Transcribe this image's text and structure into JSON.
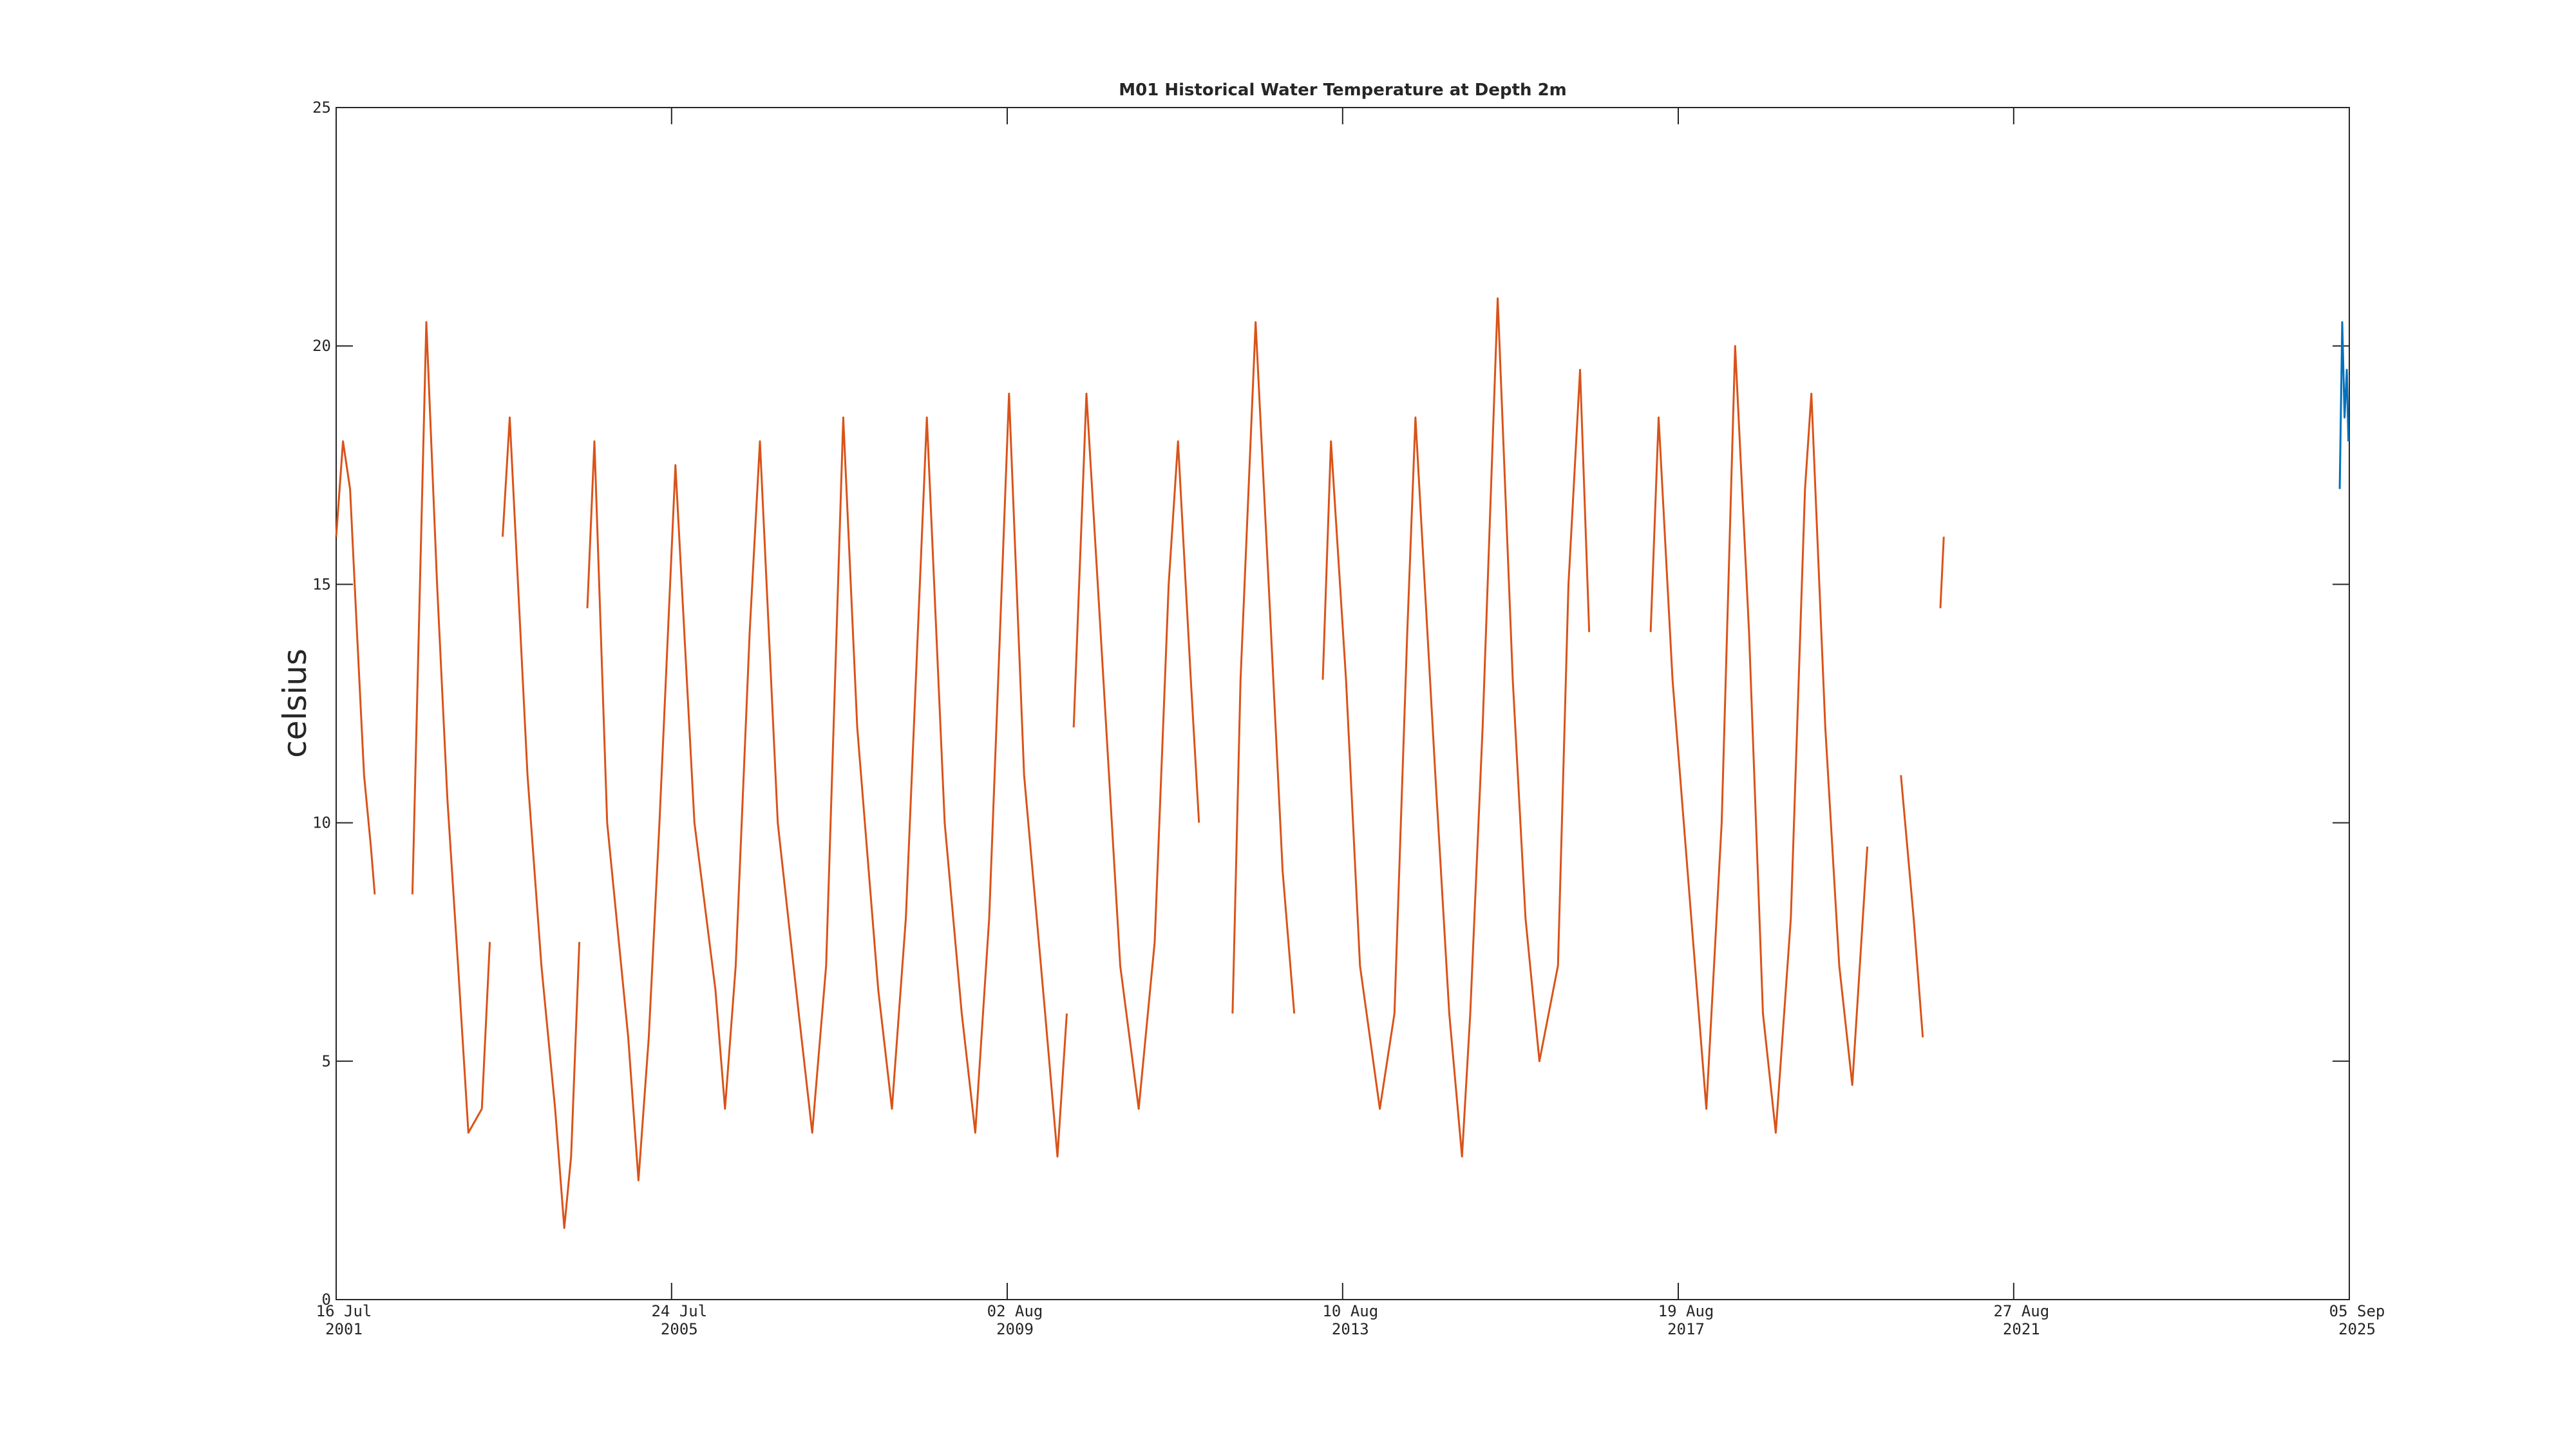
{
  "chart_data": {
    "type": "line",
    "title": "M01 Historical Water Temperature at Depth 2m",
    "y_label": "celsius",
    "xlim": [
      "2001-07-16",
      "2025-09-05"
    ],
    "xticks": [
      {
        "value": "2001-07-16",
        "label": [
          "16 Jul",
          "2001"
        ]
      },
      {
        "value": "2005-07-24",
        "label": [
          "24 Jul",
          "2005"
        ]
      },
      {
        "value": "2009-08-02",
        "label": [
          "02 Aug",
          "2009"
        ]
      },
      {
        "value": "2013-08-10",
        "label": [
          "10 Aug",
          "2013"
        ]
      },
      {
        "value": "2017-08-19",
        "label": [
          "19 Aug",
          "2017"
        ]
      },
      {
        "value": "2021-08-27",
        "label": [
          "27 Aug",
          "2021"
        ]
      },
      {
        "value": "2025-09-05",
        "label": [
          "05 Sep",
          "2025"
        ]
      }
    ],
    "ylim": [
      0,
      25
    ],
    "yticks": [
      0,
      5,
      10,
      15,
      20,
      25
    ],
    "series": [
      {
        "color": "#d95319",
        "x": [
          "2001-07-16",
          "2001-08-15",
          "2001-09-15",
          "2001-10-15",
          "2001-11-15",
          "2001-12-15",
          "2002-01-01",
          null,
          "2002-06-15",
          "2002-08-15",
          "2002-10-01",
          "2002-11-15",
          "2003-01-01",
          "2003-02-15",
          "2003-04-15",
          "2003-05-20",
          null,
          "2003-07-15",
          "2003-08-15",
          "2003-11-01",
          "2004-01-01",
          "2004-03-01",
          "2004-04-10",
          "2004-05-10",
          "2004-06-15",
          null,
          "2004-07-20",
          "2004-08-20",
          "2004-10-15",
          "2005-01-15",
          "2005-03-01",
          "2005-04-15",
          "2005-06-01",
          "2005-08-10",
          "2005-11-01",
          "2006-02-01",
          "2006-03-15",
          "2006-05-01",
          "2006-07-01",
          "2006-08-15",
          "2006-11-01",
          "2007-02-01",
          "2007-04-01",
          "2007-06-01",
          "2007-08-15",
          "2007-10-15",
          "2008-01-15",
          "2008-03-15",
          "2008-05-15",
          "2008-08-15",
          "2008-11-01",
          "2009-01-15",
          "2009-03-15",
          "2009-05-15",
          "2009-08-10",
          "2009-10-15",
          "2010-01-15",
          "2010-03-10",
          "2010-04-20",
          null,
          "2010-05-20",
          "2010-07-15",
          "2010-09-15",
          "2010-12-10",
          "2011-03-01",
          "2011-05-10",
          "2011-07-10",
          "2011-08-20",
          "2011-10-15",
          "2011-11-20",
          null,
          "2012-04-15",
          "2012-05-20",
          "2012-07-25",
          "2012-09-20",
          "2012-11-20",
          "2013-01-10",
          null,
          "2013-05-15",
          "2013-06-20",
          "2013-08-25",
          "2013-10-25",
          "2014-01-20",
          "2014-03-25",
          "2014-05-20",
          "2014-06-25",
          "2014-09-20",
          "2014-11-20",
          "2015-01-15",
          "2015-02-20",
          "2015-04-15",
          "2015-06-20",
          "2015-08-25",
          "2015-10-20",
          "2015-12-20",
          "2016-03-10",
          "2016-04-25",
          "2016-06-15",
          "2016-07-25",
          null,
          "2017-04-20",
          "2017-05-25",
          "2017-07-25",
          "2017-10-15",
          "2017-12-20",
          "2018-02-25",
          "2018-04-25",
          "2018-06-25",
          "2018-08-25",
          "2018-10-20",
          "2018-12-25",
          "2019-02-25",
          "2019-03-25",
          "2019-05-25",
          "2019-07-25",
          "2019-09-20",
          "2019-11-25",
          null,
          "2020-04-20",
          "2020-06-15",
          "2020-07-25",
          null,
          "2020-10-10",
          "2020-10-25"
        ],
        "values": [
          16,
          18,
          17,
          14,
          11,
          9.5,
          8.5,
          null,
          8.5,
          20.5,
          15,
          10.5,
          7,
          3.5,
          4,
          7.5,
          null,
          16,
          18.5,
          11,
          7,
          4,
          1.5,
          3,
          7.5,
          null,
          14.5,
          18,
          10,
          5.5,
          2.5,
          5.5,
          10,
          17.5,
          10,
          6.5,
          4,
          7,
          14,
          18,
          10,
          6,
          3.5,
          7,
          18.5,
          12,
          6.5,
          4,
          8,
          18.5,
          10,
          6,
          3.5,
          8,
          19,
          11,
          6,
          3,
          6,
          null,
          12,
          19,
          14,
          7,
          4,
          7.5,
          15,
          18,
          13,
          10,
          null,
          6,
          13,
          20.5,
          15,
          9,
          6,
          null,
          13,
          18,
          13,
          7,
          4,
          6,
          14,
          18.5,
          11,
          6,
          3,
          6,
          12,
          21,
          13,
          8,
          5,
          7,
          15,
          19.5,
          14,
          null,
          14,
          18.5,
          13,
          8,
          4,
          10,
          20,
          14,
          6,
          3.5,
          8,
          17,
          19,
          12,
          7,
          4.5,
          9.5,
          null,
          11,
          8,
          5.5,
          null,
          14.5,
          16
        ]
      },
      {
        "color": "#0072bd",
        "x": [
          "2025-07-25",
          "2025-08-05",
          "2025-08-15",
          "2025-08-25",
          "2025-09-01"
        ],
        "values": [
          17,
          20.5,
          18.5,
          19.5,
          18
        ]
      }
    ]
  }
}
